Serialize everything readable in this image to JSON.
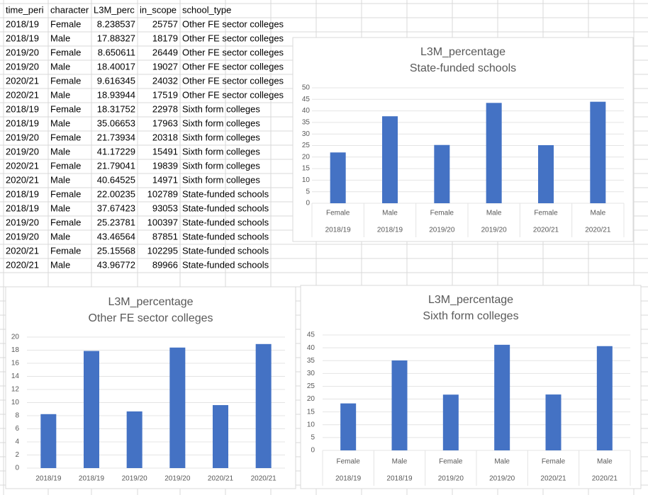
{
  "table": {
    "header": [
      "time_peri",
      "character",
      "L3M_perc",
      "in_scope",
      "school_type"
    ],
    "rows": [
      [
        "2018/19",
        "Female",
        8.238537,
        25757,
        "Other FE sector colleges"
      ],
      [
        "2018/19",
        "Male",
        17.88327,
        18179,
        "Other FE sector colleges"
      ],
      [
        "2019/20",
        "Female",
        8.650611,
        26449,
        "Other FE sector colleges"
      ],
      [
        "2019/20",
        "Male",
        18.40017,
        19027,
        "Other FE sector colleges"
      ],
      [
        "2020/21",
        "Female",
        9.616345,
        24032,
        "Other FE sector colleges"
      ],
      [
        "2020/21",
        "Male",
        18.93944,
        17519,
        "Other FE sector colleges"
      ],
      [
        "2018/19",
        "Female",
        18.31752,
        22978,
        "Sixth form colleges"
      ],
      [
        "2018/19",
        "Male",
        35.06653,
        17963,
        "Sixth form colleges"
      ],
      [
        "2019/20",
        "Female",
        21.73934,
        20318,
        "Sixth form colleges"
      ],
      [
        "2019/20",
        "Male",
        41.17229,
        15491,
        "Sixth form colleges"
      ],
      [
        "2020/21",
        "Female",
        21.79041,
        19839,
        "Sixth form colleges"
      ],
      [
        "2020/21",
        "Male",
        40.64525,
        14971,
        "Sixth form colleges"
      ],
      [
        "2018/19",
        "Female",
        22.00235,
        102789,
        "State-funded schools"
      ],
      [
        "2018/19",
        "Male",
        37.67423,
        93053,
        "State-funded schools"
      ],
      [
        "2019/20",
        "Female",
        25.23781,
        100397,
        "State-funded schools"
      ],
      [
        "2019/20",
        "Male",
        43.46564,
        87851,
        "State-funded schools"
      ],
      [
        "2020/21",
        "Female",
        25.15568,
        102295,
        "State-funded schools"
      ],
      [
        "2020/21",
        "Male",
        43.96772,
        89966,
        "State-funded schools"
      ]
    ]
  },
  "chart_data": [
    {
      "type": "bar",
      "title": "L3M_percentage",
      "subtitle": "State-funded schools",
      "categories": [
        "Female",
        "Male",
        "Female",
        "Male",
        "Female",
        "Male"
      ],
      "subcategories": [
        "2018/19",
        "2018/19",
        "2019/20",
        "2019/20",
        "2020/21",
        "2020/21"
      ],
      "values": [
        22.00235,
        37.67423,
        25.23781,
        43.46564,
        25.15568,
        43.96772
      ],
      "color": "#4472c4",
      "ylim": [
        0,
        50
      ],
      "yticks": [
        0,
        5,
        10,
        15,
        20,
        25,
        30,
        35,
        40,
        45,
        50
      ],
      "grid": true
    },
    {
      "type": "bar",
      "title": "L3M_percentage",
      "subtitle": "Other FE sector colleges",
      "categories": [
        "2018/19",
        "2018/19",
        "2019/20",
        "2019/20",
        "2020/21",
        "2020/21"
      ],
      "values": [
        8.238537,
        17.88327,
        8.650611,
        18.40017,
        9.616345,
        18.93944
      ],
      "color": "#4472c4",
      "ylim": [
        0,
        20
      ],
      "yticks": [
        0,
        2,
        4,
        6,
        8,
        10,
        12,
        14,
        16,
        18,
        20
      ],
      "grid": true
    },
    {
      "type": "bar",
      "title": "L3M_percentage",
      "subtitle": "Sixth form colleges",
      "categories": [
        "Female",
        "Male",
        "Female",
        "Male",
        "Female",
        "Male"
      ],
      "subcategories": [
        "2018/19",
        "2018/19",
        "2019/20",
        "2019/20",
        "2020/21",
        "2020/21"
      ],
      "values": [
        18.31752,
        35.06653,
        21.73934,
        41.17229,
        21.79041,
        40.64525
      ],
      "color": "#4472c4",
      "ylim": [
        0,
        45
      ],
      "yticks": [
        0,
        5,
        10,
        15,
        20,
        25,
        30,
        35,
        40,
        45
      ],
      "grid": true
    }
  ]
}
